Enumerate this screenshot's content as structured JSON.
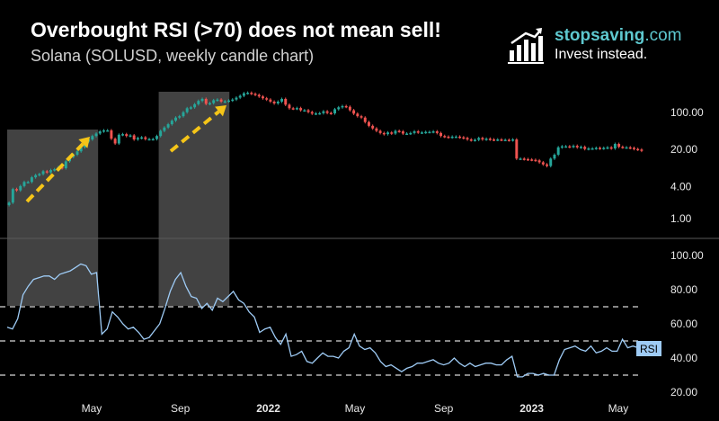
{
  "header": {
    "title": "Overbought RSI (>70) does not mean sell!",
    "subtitle": "Solana (SOLUSD, weekly candle chart)"
  },
  "brand": {
    "name_main": "stopsaving",
    "name_suffix": ".com",
    "tagline": "Invest instead.",
    "logo_icon": "bar-chart-growth-icon",
    "color": "#5ec8cf"
  },
  "colors": {
    "background": "#000000",
    "candle_up": "#26a69a",
    "candle_down": "#ef5350",
    "rsi_line": "#9ecbf5",
    "highlight_box": "#4d4d4d",
    "arrow": "#f5c518",
    "guide_line": "#d8d8d8"
  },
  "chart_data": [
    {
      "type": "candlestick",
      "scale": "log",
      "y_ticks": [
        "100.00",
        "20.00",
        "4.00",
        "1.00"
      ],
      "y_tick_values": [
        100,
        20,
        4,
        1
      ],
      "x_ticks": [
        "May",
        "Sep",
        "2022",
        "May",
        "Sep",
        "2023",
        "May"
      ],
      "x_ticks_bold": [
        false,
        false,
        true,
        false,
        false,
        true,
        false
      ],
      "x_tick_dates": [
        "2021-05-01",
        "2021-09-01",
        "2022-01-01",
        "2022-05-01",
        "2022-09-01",
        "2023-01-01",
        "2023-05-01"
      ],
      "approx_weekly_close": [
        2.0,
        3.6,
        3.4,
        4.1,
        4.9,
        4.9,
        6.0,
        6.6,
        6.9,
        7.8,
        7.4,
        8.2,
        8.5,
        9.3,
        8.9,
        12.0,
        14.5,
        16.0,
        18.5,
        22.0,
        28.0,
        31.0,
        36.0,
        40.0,
        44.0,
        46.0,
        46.0,
        32.0,
        26.0,
        38.0,
        39.0,
        36.0,
        37.0,
        31.0,
        33.0,
        34.0,
        31.5,
        31.5,
        31.5,
        36.0,
        45.0,
        52.0,
        60.0,
        70.0,
        80.0,
        85.0,
        101.0,
        120.0,
        125.0,
        143.0,
        165.0,
        180.0,
        145.0,
        150.0,
        170.0,
        175.0,
        160.0,
        162.0,
        168.0,
        175.0,
        190.0,
        206.0,
        230.0,
        235.0,
        225.0,
        215.0,
        200.0,
        185.0,
        175.0,
        160.0,
        148.0,
        160.0,
        180.0,
        140.0,
        120.0,
        118.0,
        121.0,
        110.0,
        110.0,
        102.0,
        95.0,
        96.0,
        97.0,
        105.0,
        98.0,
        96.0,
        115.0,
        125.0,
        132.0,
        128.0,
        110.0,
        95.0,
        85.0,
        80.0,
        66.0,
        56.0,
        50.0,
        45.0,
        41.0,
        39.0,
        42.0,
        40.0,
        45.0,
        44.0,
        40.0,
        40.0,
        41.0,
        44.0,
        42.0,
        42.0,
        43.0,
        43.0,
        44.0,
        41.0,
        36.0,
        35.0,
        34.0,
        35.0,
        35.0,
        34.0,
        33.0,
        31.0,
        30.0,
        30.5,
        33.0,
        31.0,
        32.0,
        31.0,
        30.5,
        31.0,
        30.5,
        30.5,
        30.0,
        31.0,
        13.5,
        13.5,
        13.2,
        13.0,
        12.8,
        12.5,
        11.5,
        10.5,
        9.8,
        13.5,
        16.0,
        22.0,
        23.0,
        23.0,
        22.5,
        23.5,
        22.0,
        22.5,
        20.5,
        21.0,
        21.0,
        21.5,
        21.0,
        21.5,
        22.0,
        21.0,
        25.5,
        22.5,
        22.0,
        22.0,
        21.5,
        20.5,
        20.0,
        19.0
      ],
      "overbought_zones": [
        {
          "start": "2021-01-04",
          "end": "2021-05-10"
        },
        {
          "start": "2021-08-02",
          "end": "2021-11-08"
        }
      ]
    },
    {
      "type": "line",
      "series": [
        {
          "name": "RSI"
        }
      ],
      "y_ticks": [
        "100.00",
        "80.00",
        "60.00",
        "40.00",
        "20.00"
      ],
      "y_tick_values": [
        100,
        80,
        60,
        40,
        20
      ],
      "guide_lines": [
        70,
        50,
        30
      ],
      "approx_values": [
        58,
        57,
        63,
        77,
        82,
        86,
        87,
        88,
        88,
        86,
        89,
        90,
        91,
        93,
        95,
        94,
        89,
        90,
        54,
        57,
        67,
        64,
        60,
        57,
        58,
        55,
        51,
        52,
        56,
        60,
        69,
        79,
        86,
        90,
        82,
        76,
        75,
        69,
        72,
        68,
        75,
        73,
        76,
        79,
        74,
        72,
        67,
        64,
        55,
        57,
        58,
        52,
        48,
        54,
        41,
        42,
        44,
        38,
        37,
        40,
        43,
        41,
        41,
        40,
        44,
        46,
        54,
        47,
        45,
        46,
        43,
        38,
        35,
        36,
        34,
        32,
        34,
        35,
        37,
        37,
        38,
        39,
        37,
        36,
        37,
        40,
        37,
        35,
        37,
        35,
        36,
        37,
        37,
        36,
        36,
        39,
        41,
        29,
        29,
        31,
        31,
        30,
        31,
        30,
        30,
        39,
        45,
        46,
        47,
        45,
        44,
        47,
        43,
        44,
        46,
        44,
        44,
        51,
        46,
        47,
        46,
        44
      ]
    }
  ],
  "rsi_label": "RSI"
}
